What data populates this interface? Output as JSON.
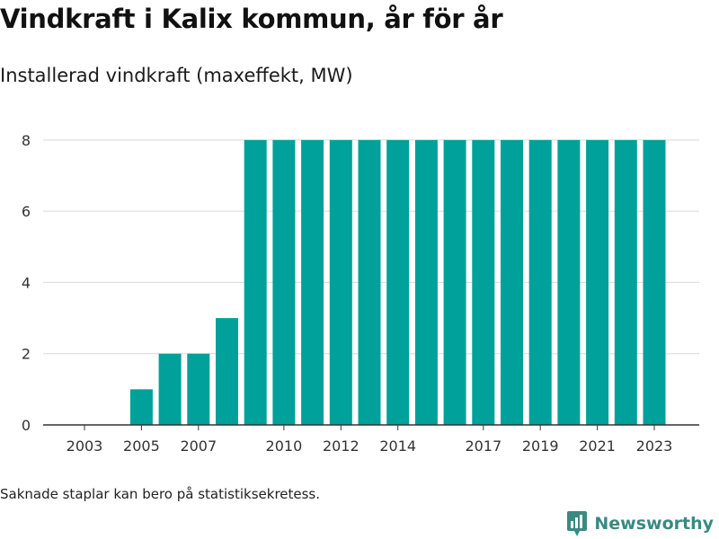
{
  "title": "Vindkraft i Kalix kommun, år för år",
  "subtitle": "Installerad vindkraft (maxeffekt, MW)",
  "footnote": "Saknade staplar kan bero på statistiksekretess.",
  "brand": {
    "name": "Newsworthy",
    "icon": "newsworthy-logo-icon",
    "color": "#3a8a82"
  },
  "colors": {
    "bar": "#00a19a",
    "grid": "#d9d9d9",
    "axis": "#333333"
  },
  "chart_data": {
    "type": "bar",
    "categories": [
      "2003",
      "2004",
      "2005",
      "2006",
      "2007",
      "2008",
      "2009",
      "2010",
      "2011",
      "2012",
      "2013",
      "2014",
      "2015",
      "2016",
      "2017",
      "2018",
      "2019",
      "2020",
      "2021",
      "2022",
      "2023"
    ],
    "values": [
      0,
      0,
      1,
      2,
      2,
      3,
      8,
      8,
      8,
      8,
      8,
      8,
      8,
      8,
      8,
      8,
      8,
      8,
      8,
      8,
      8
    ],
    "x_tick_labels": [
      "2003",
      "2005",
      "2007",
      "2010",
      "2012",
      "2014",
      "2017",
      "2019",
      "2021",
      "2023"
    ],
    "y_ticks": [
      0,
      2,
      4,
      6,
      8
    ],
    "ylim": [
      0,
      8.4
    ],
    "xlabel": "",
    "ylabel": "",
    "grid": "horizontal"
  }
}
